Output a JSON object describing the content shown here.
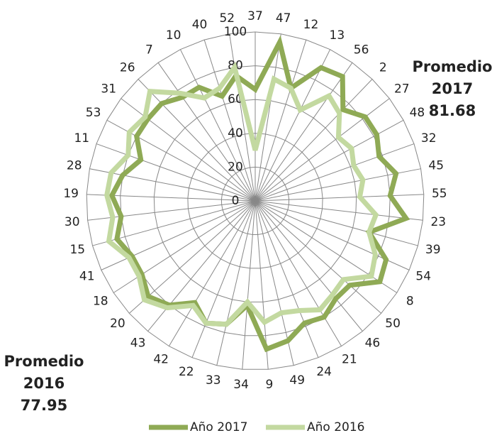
{
  "chart_data": {
    "type": "radar",
    "categories": [
      "37",
      "47",
      "12",
      "13",
      "56",
      "2",
      "27",
      "48",
      "32",
      "45",
      "55",
      "23",
      "39",
      "54",
      "8",
      "50",
      "46",
      "21",
      "24",
      "49",
      "9",
      "34",
      "33",
      "22",
      "42",
      "43",
      "20",
      "18",
      "41",
      "15",
      "30",
      "19",
      "28",
      "11",
      "53",
      "31",
      "26",
      "7",
      "10",
      "40",
      "52"
    ],
    "series": [
      {
        "name": "Año 2017",
        "color": "#8faa55",
        "values": [
          66,
          95,
          70,
          88,
          90,
          75,
          82,
          82,
          78,
          85,
          80,
          90,
          70,
          85,
          88,
          75,
          75,
          80,
          78,
          85,
          88,
          62,
          75,
          78,
          70,
          80,
          85,
          80,
          80,
          85,
          80,
          85,
          80,
          72,
          80,
          80,
          80,
          75,
          75,
          65,
          75
        ]
      },
      {
        "name": "Año 2016",
        "color": "#c3d9a0",
        "values": [
          30,
          73,
          70,
          60,
          76,
          72,
          62,
          65,
          62,
          65,
          62,
          72,
          70,
          78,
          82,
          70,
          72,
          75,
          70,
          68,
          72,
          60,
          75,
          78,
          72,
          82,
          88,
          82,
          82,
          90,
          85,
          88,
          87,
          80,
          85,
          82,
          90,
          78,
          68,
          70,
          80
        ]
      }
    ],
    "rlim": [
      0,
      100
    ],
    "rticks": [
      0,
      20,
      40,
      60,
      80,
      100
    ],
    "grid": true,
    "annotations": [
      {
        "lines": [
          "Promedio",
          "2017",
          "81.68"
        ]
      },
      {
        "lines": [
          "Promedio",
          "2016",
          "77.95"
        ]
      }
    ]
  }
}
